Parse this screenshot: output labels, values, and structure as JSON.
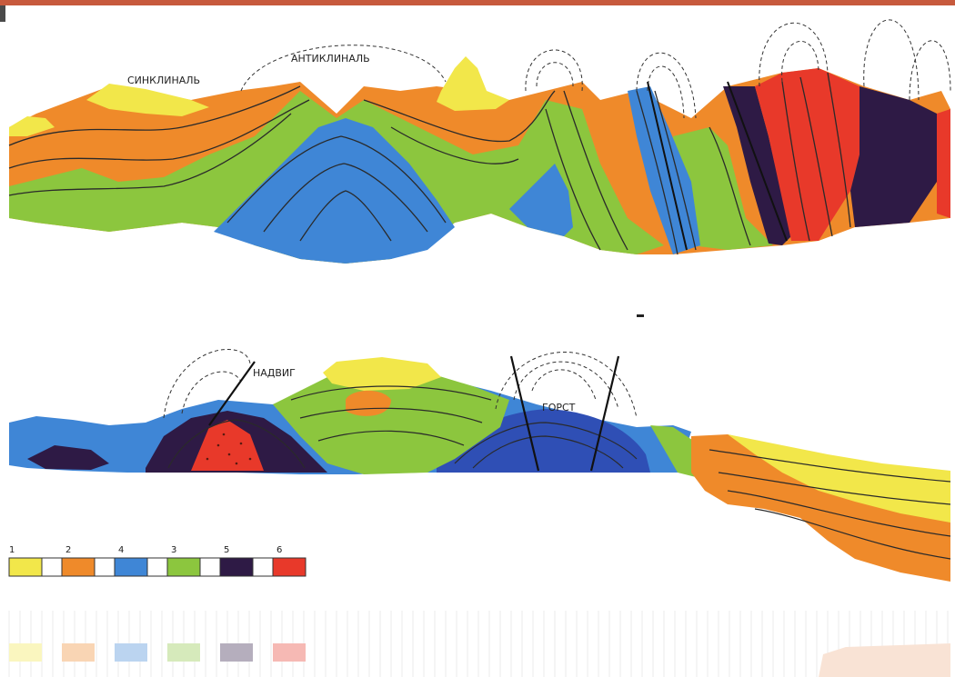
{
  "labels": {
    "syncline": "СИНКЛИНАЛЬ",
    "anticline": "АНТИКЛИНАЛЬ",
    "thrust": "НАДВИГ",
    "horst": "ГОРСТ"
  },
  "legend": [
    {
      "number": "1",
      "color": "#f2e74a"
    },
    {
      "number": "2",
      "color": "#ef8a2a"
    },
    {
      "number": "4",
      "color": "#3f86d6"
    },
    {
      "number": "3",
      "color": "#8cc63e"
    },
    {
      "number": "5",
      "color": "#2e1a45"
    },
    {
      "number": "6",
      "color": "#e8392a"
    }
  ],
  "colors": {
    "yellow": "#f2e74a",
    "orange": "#ef8a2a",
    "green": "#8cc63e",
    "blue": "#3f86d6",
    "dark_blue": "#2f4fb5",
    "purple": "#2e1a45",
    "red": "#e8392a"
  }
}
